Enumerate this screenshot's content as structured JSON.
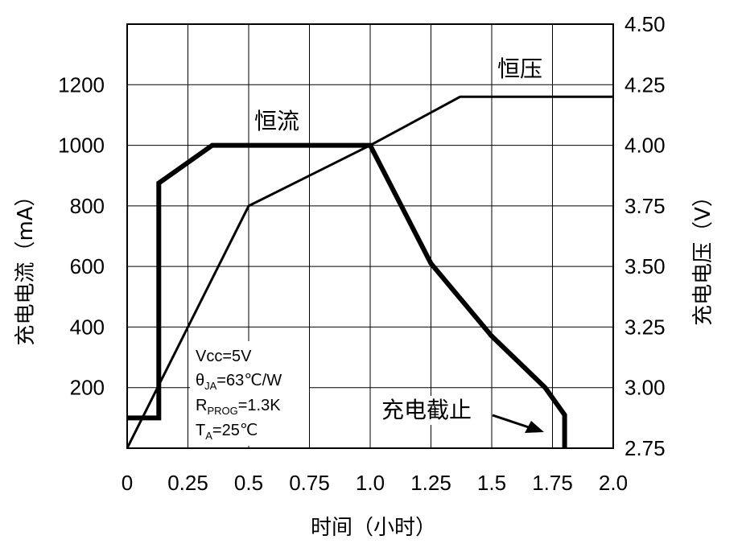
{
  "chart_data": {
    "type": "line",
    "title": "",
    "xlabel": "时间（小时）",
    "ylabel_left": "充电电流（mA）",
    "ylabel_right": "充电电压（V）",
    "xlim": [
      0,
      2.0
    ],
    "ylim_left": [
      0,
      1400
    ],
    "ylim_right": [
      2.75,
      4.5
    ],
    "grid": true,
    "x_ticks": [
      "0",
      "0.25",
      "0.5",
      "0.75",
      "1.0",
      "1.25",
      "1.5",
      "1.75",
      "2.0"
    ],
    "x_tick_values": [
      0,
      0.25,
      0.5,
      0.75,
      1.0,
      1.25,
      1.5,
      1.75,
      2.0
    ],
    "y_left_ticks": [
      "200",
      "400",
      "600",
      "800",
      "1000",
      "1200"
    ],
    "y_left_tick_values": [
      200,
      400,
      600,
      800,
      1000,
      1200
    ],
    "y_right_ticks": [
      "2.75",
      "3.00",
      "3.25",
      "3.50",
      "3.75",
      "4.00",
      "4.25",
      "4.50"
    ],
    "y_right_tick_values": [
      2.75,
      3.0,
      3.25,
      3.5,
      3.75,
      4.0,
      4.25,
      4.5
    ],
    "series": [
      {
        "name": "充电电流",
        "axis": "left",
        "style": "thick",
        "x": [
          0,
          0.13,
          0.13,
          0.35,
          1.0,
          1.25,
          1.5,
          1.72,
          1.8,
          1.8
        ],
        "y": [
          100,
          100,
          875,
          1000,
          1000,
          610,
          370,
          200,
          110,
          0
        ]
      },
      {
        "name": "充电电压",
        "axis": "right",
        "style": "thin",
        "x": [
          0,
          0.5,
          1.0,
          1.37,
          2.0
        ],
        "y": [
          2.75,
          3.75,
          4.0,
          4.2,
          4.2
        ]
      }
    ],
    "annotations": {
      "constant_current": "恒流",
      "constant_voltage": "恒压",
      "charge_termination": "充电截止"
    },
    "conditions": {
      "vcc": "Vcc=5V",
      "theta_main": "θ",
      "theta_sub": "JA",
      "theta_rest": "=63℃/W",
      "rprog_main": "R",
      "rprog_sub": "PROG",
      "rprog_rest": "=1.3K",
      "ta_main": "T",
      "ta_sub": "A",
      "ta_rest": "=25℃"
    }
  }
}
